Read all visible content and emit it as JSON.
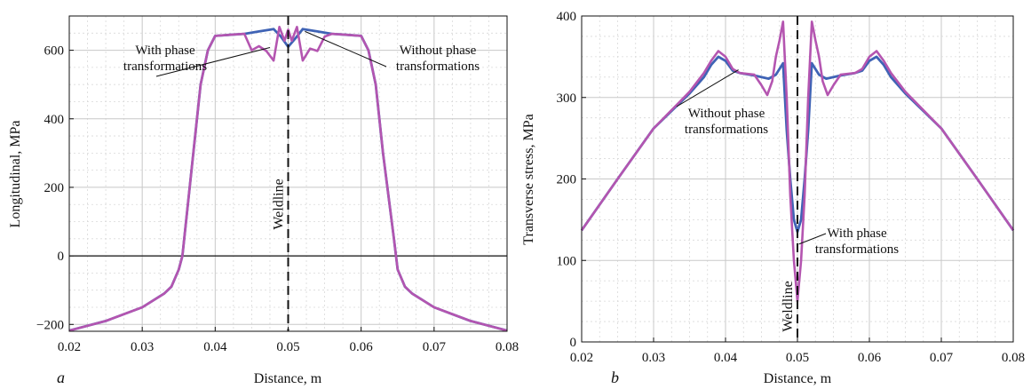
{
  "chart_data": [
    {
      "type": "line",
      "panel_label": "a",
      "title": "",
      "xlabel": "Distance, m",
      "ylabel": "Longitudinal, MPa",
      "xlim": [
        0.02,
        0.08
      ],
      "ylim": [
        -220,
        700
      ],
      "xticks": [
        "0.02",
        "0.03",
        "0.04",
        "0.05",
        "0.06",
        "0.07",
        "0.08"
      ],
      "yticks": [
        "−200",
        "0",
        "200",
        "400",
        "600"
      ],
      "grid": true,
      "weldline_label": "Weldline",
      "weldline_x": 0.05,
      "colors": {
        "without": "#3f63b5",
        "with": "#b455b0"
      },
      "annotations": [
        {
          "text": [
            "With phase",
            "transformations"
          ],
          "series": "with"
        },
        {
          "text": [
            "Without phase",
            "transformations"
          ],
          "series": "without"
        }
      ],
      "series": [
        {
          "id": "without",
          "x": [
            0.02,
            0.025,
            0.03,
            0.033,
            0.034,
            0.035,
            0.0355,
            0.036,
            0.037,
            0.038,
            0.039,
            0.04,
            0.042,
            0.044,
            0.046,
            0.048,
            0.049,
            0.05,
            0.051,
            0.052,
            0.054,
            0.056,
            0.058,
            0.06,
            0.061,
            0.062,
            0.063,
            0.0645,
            0.065,
            0.066,
            0.067,
            0.07,
            0.075,
            0.08
          ],
          "y": [
            -218,
            -190,
            -150,
            -110,
            -90,
            -40,
            0,
            100,
            300,
            500,
            600,
            642,
            645,
            648,
            655,
            662,
            640,
            610,
            635,
            662,
            655,
            648,
            645,
            642,
            600,
            500,
            300,
            50,
            -40,
            -90,
            -110,
            -150,
            -190,
            -218
          ]
        },
        {
          "id": "with",
          "x": [
            0.02,
            0.025,
            0.03,
            0.033,
            0.034,
            0.035,
            0.0355,
            0.036,
            0.037,
            0.038,
            0.039,
            0.04,
            0.042,
            0.044,
            0.045,
            0.046,
            0.047,
            0.048,
            0.0488,
            0.0495,
            0.05,
            0.0505,
            0.0512,
            0.052,
            0.053,
            0.054,
            0.055,
            0.056,
            0.058,
            0.06,
            0.061,
            0.062,
            0.063,
            0.0645,
            0.065,
            0.066,
            0.067,
            0.07,
            0.075,
            0.08
          ],
          "y": [
            -218,
            -190,
            -150,
            -110,
            -90,
            -40,
            0,
            100,
            300,
            500,
            600,
            642,
            645,
            648,
            600,
            612,
            598,
            570,
            668,
            628,
            660,
            628,
            668,
            570,
            605,
            598,
            640,
            648,
            645,
            642,
            600,
            500,
            300,
            50,
            -40,
            -90,
            -110,
            -150,
            -190,
            -218
          ]
        }
      ]
    },
    {
      "type": "line",
      "panel_label": "b",
      "title": "",
      "xlabel": "Distance, m",
      "ylabel": "Transverse stress, MPa",
      "xlim": [
        0.02,
        0.08
      ],
      "ylim": [
        0,
        400
      ],
      "xticks": [
        "0.02",
        "0.03",
        "0.04",
        "0.05",
        "0.06",
        "0.07",
        "0.08"
      ],
      "yticks": [
        "0",
        "100",
        "200",
        "300",
        "400"
      ],
      "grid": true,
      "weldline_label": "Weldline",
      "weldline_x": 0.05,
      "colors": {
        "without": "#3f63b5",
        "with": "#b455b0"
      },
      "annotations": [
        {
          "text": [
            "Without phase",
            "transformations"
          ],
          "series": "without"
        },
        {
          "text": [
            "With phase",
            "transformations"
          ],
          "series": "with"
        }
      ],
      "series": [
        {
          "id": "without",
          "x": [
            0.02,
            0.025,
            0.03,
            0.035,
            0.037,
            0.038,
            0.039,
            0.04,
            0.041,
            0.042,
            0.044,
            0.046,
            0.047,
            0.048,
            0.0485,
            0.049,
            0.0495,
            0.05,
            0.0505,
            0.051,
            0.0515,
            0.052,
            0.053,
            0.054,
            0.056,
            0.058,
            0.059,
            0.06,
            0.061,
            0.062,
            0.063,
            0.065,
            0.07,
            0.075,
            0.08
          ],
          "y": [
            137,
            200,
            262,
            305,
            325,
            340,
            350,
            345,
            333,
            330,
            327,
            323,
            328,
            342,
            260,
            200,
            150,
            135,
            150,
            200,
            260,
            342,
            328,
            323,
            327,
            330,
            333,
            345,
            350,
            340,
            325,
            305,
            262,
            200,
            137
          ]
        },
        {
          "id": "with",
          "x": [
            0.02,
            0.025,
            0.03,
            0.035,
            0.037,
            0.038,
            0.039,
            0.04,
            0.041,
            0.042,
            0.044,
            0.045,
            0.0458,
            0.0465,
            0.047,
            0.0475,
            0.048,
            0.0485,
            0.049,
            0.0495,
            0.05,
            0.0505,
            0.051,
            0.0515,
            0.052,
            0.0525,
            0.053,
            0.0535,
            0.0542,
            0.055,
            0.056,
            0.058,
            0.059,
            0.06,
            0.061,
            0.062,
            0.063,
            0.065,
            0.07,
            0.075,
            0.08
          ],
          "y": [
            137,
            200,
            262,
            307,
            330,
            345,
            357,
            350,
            335,
            330,
            328,
            315,
            303,
            320,
            350,
            370,
            393,
            300,
            180,
            100,
            50,
            100,
            180,
            300,
            393,
            370,
            350,
            320,
            303,
            315,
            328,
            330,
            335,
            350,
            357,
            345,
            330,
            307,
            262,
            200,
            137
          ]
        }
      ]
    }
  ]
}
